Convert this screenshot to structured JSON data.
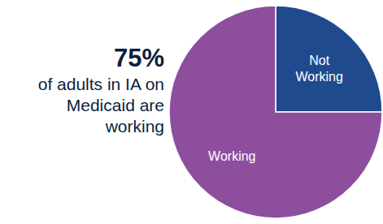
{
  "chart_data": {
    "type": "pie",
    "title": "75%",
    "subtitle": "of adults in IA on Medicaid are working",
    "categories": [
      "Not Working",
      "Working"
    ],
    "values": [
      25,
      75
    ],
    "colors": [
      "#1f4b8e",
      "#8e4e9e"
    ]
  }
}
